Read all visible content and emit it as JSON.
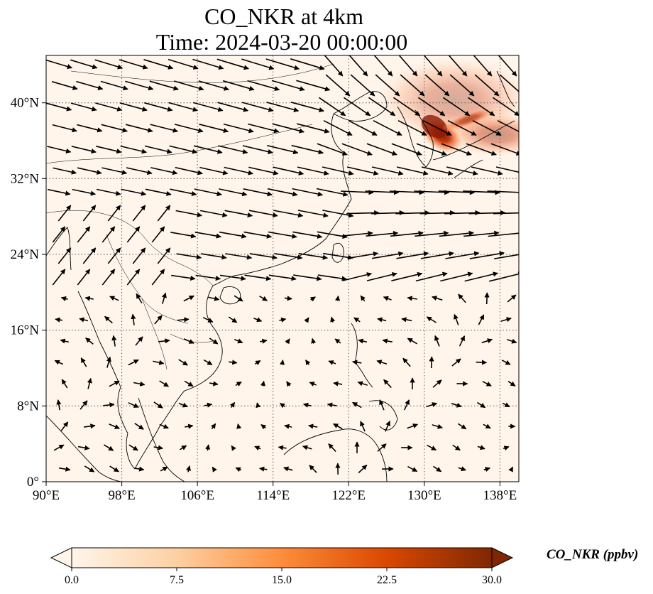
{
  "title": {
    "line1": "CO_NKR at 4km",
    "line2": "Time: 2024-03-20 00:00:00"
  },
  "map": {
    "lon_range": [
      90,
      140
    ],
    "lat_range": [
      0,
      45
    ],
    "lon_ticks": [
      "90°E",
      "98°E",
      "106°E",
      "114°E",
      "122°E",
      "130°E",
      "138°E"
    ],
    "lat_ticks": [
      "0°",
      "8°N",
      "16°N",
      "24°N",
      "32°N",
      "40°N"
    ],
    "gridlines": "dotted",
    "background_color": "#fff5eb",
    "plume_region": "Korean Peninsula / Sea of Japan, max ~30 ppbv",
    "wind_vectors": "westerly flow aloft, strongest over East China Sea and Japan"
  },
  "colorbar": {
    "title": "CO_NKR (ppbv)",
    "ticks": [
      "0.0",
      "7.5",
      "15.0",
      "22.5",
      "30.0"
    ],
    "range": [
      0,
      30
    ],
    "colormap": [
      "#fff5eb",
      "#fdd0a2",
      "#fd8d3c",
      "#d94801",
      "#7f2704"
    ],
    "extend": "both"
  }
}
